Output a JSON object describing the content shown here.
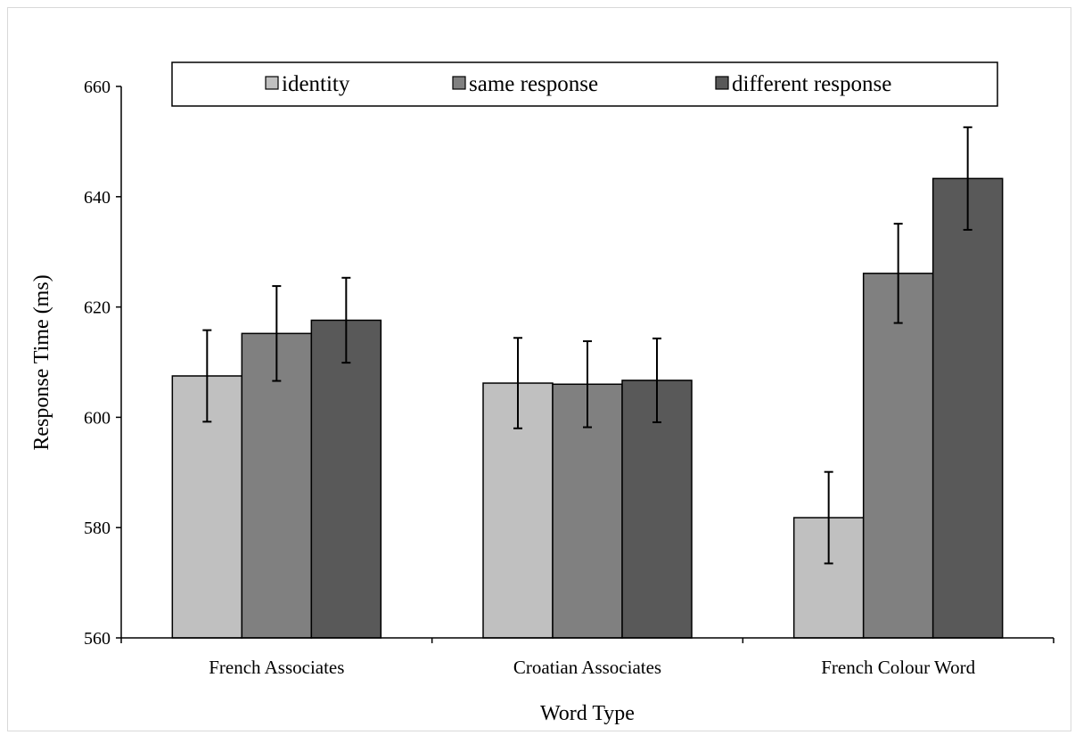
{
  "chart_data": {
    "type": "bar",
    "xlabel": "Word Type",
    "ylabel": "Response Time (ms)",
    "ylim": [
      560,
      660
    ],
    "yticks": [
      560,
      580,
      600,
      620,
      640,
      660
    ],
    "ytick_labels": [
      "560",
      "580",
      "600",
      "620",
      "640",
      "660"
    ],
    "categories": [
      "French Associates",
      "Croatian Associates",
      "French Colour Word"
    ],
    "series": [
      {
        "name": "identity",
        "color": "#c0c0c0",
        "values": [
          607.5,
          606.2,
          581.8
        ],
        "errors": [
          8.3,
          8.2,
          8.3
        ]
      },
      {
        "name": "same response",
        "color": "#808080",
        "values": [
          615.2,
          606.0,
          626.1
        ],
        "errors": [
          8.6,
          7.8,
          9.0
        ]
      },
      {
        "name": "different response",
        "color": "#595959",
        "values": [
          617.6,
          606.7,
          643.3
        ],
        "errors": [
          7.7,
          7.6,
          9.3
        ]
      }
    ],
    "legend_position": "top",
    "grid": false
  }
}
